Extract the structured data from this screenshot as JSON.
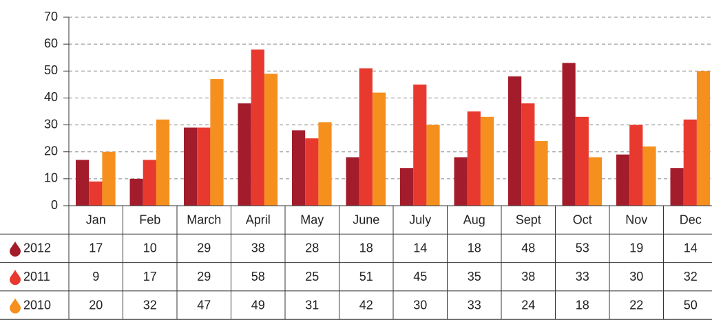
{
  "chart_data": {
    "type": "bar",
    "categories": [
      "Jan",
      "Feb",
      "March",
      "April",
      "May",
      "June",
      "July",
      "Aug",
      "Sept",
      "Oct",
      "Nov",
      "Dec"
    ],
    "series": [
      {
        "name": "2012",
        "color": "#a31c2b",
        "values": [
          17,
          10,
          29,
          38,
          28,
          18,
          14,
          18,
          48,
          53,
          19,
          14
        ]
      },
      {
        "name": "2011",
        "color": "#e8392f",
        "values": [
          9,
          17,
          29,
          58,
          25,
          51,
          45,
          35,
          38,
          33,
          30,
          32
        ]
      },
      {
        "name": "2010",
        "color": "#f5901e",
        "values": [
          20,
          32,
          47,
          49,
          31,
          42,
          30,
          33,
          24,
          18,
          22,
          50
        ]
      }
    ],
    "ylim": [
      0,
      70
    ],
    "yticks": [
      0,
      10,
      20,
      30,
      40,
      50,
      60,
      70
    ],
    "grid": true
  }
}
